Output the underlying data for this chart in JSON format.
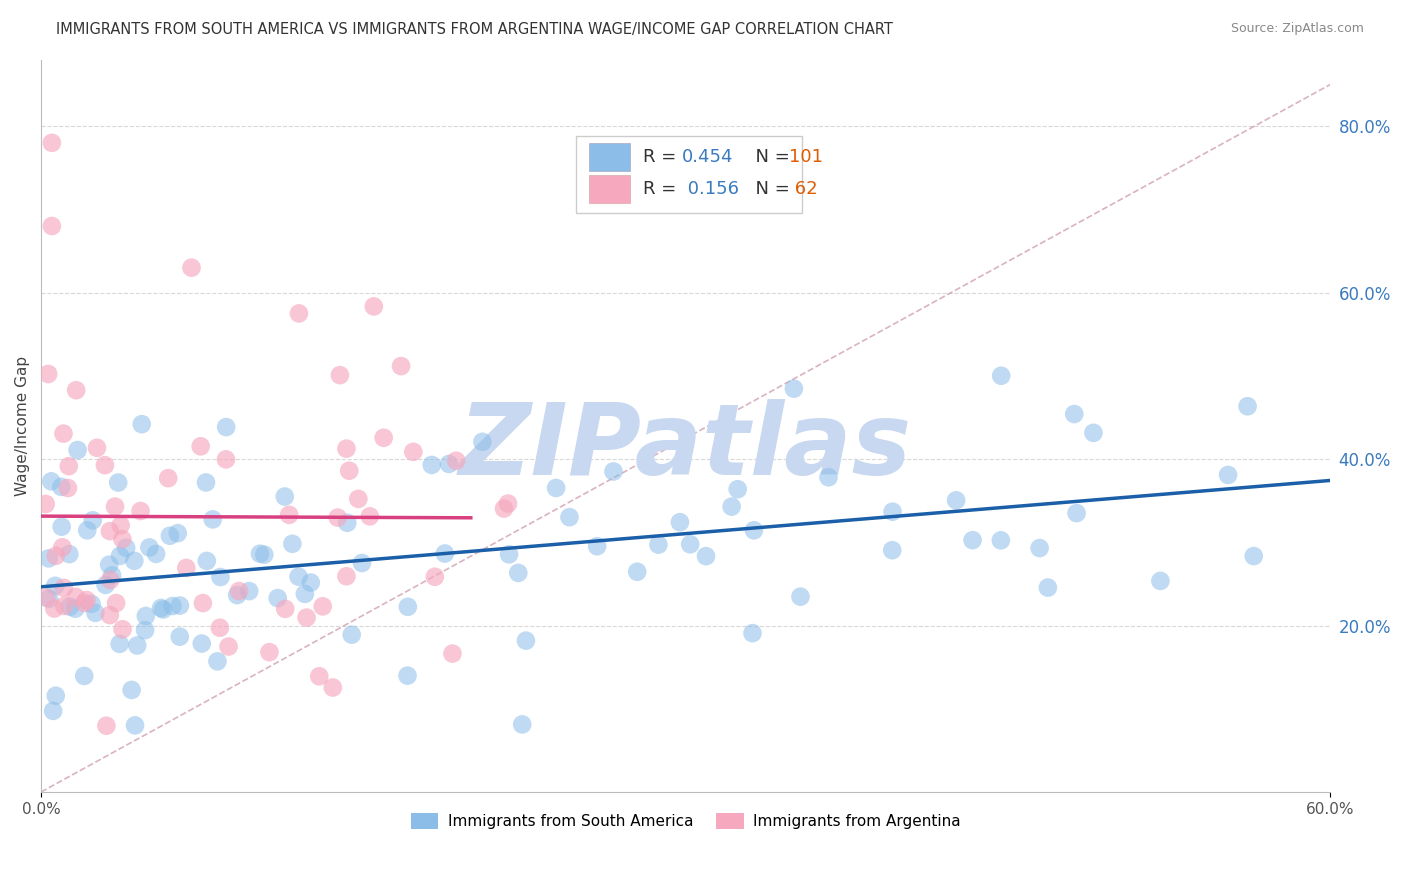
{
  "title": "IMMIGRANTS FROM SOUTH AMERICA VS IMMIGRANTS FROM ARGENTINA WAGE/INCOME GAP CORRELATION CHART",
  "source": "Source: ZipAtlas.com",
  "ylabel": "Wage/Income Gap",
  "xlim": [
    0.0,
    0.6
  ],
  "ylim": [
    0.0,
    0.88
  ],
  "y_ticks_right": [
    0.2,
    0.4,
    0.6,
    0.8
  ],
  "y_tick_labels_right": [
    "20.0%",
    "40.0%",
    "60.0%",
    "80.0%"
  ],
  "blue_color": "#8bbde8",
  "pink_color": "#f5a8be",
  "blue_line_color": "#1a5fa8",
  "pink_line_color": "#d94080",
  "dash_color": "#d0a0b0",
  "R_blue": 0.454,
  "N_blue": 101,
  "R_pink": 0.156,
  "N_pink": 62,
  "watermark": "ZIPatlas",
  "watermark_color": "#c8d8f0",
  "background_color": "#ffffff",
  "grid_color": "#d8d8d8",
  "title_color": "#333333",
  "source_color": "#888888",
  "legend_r_color": "#3a7bbf",
  "legend_n_color": "#e05c00",
  "tick_color": "#3a7bbf"
}
